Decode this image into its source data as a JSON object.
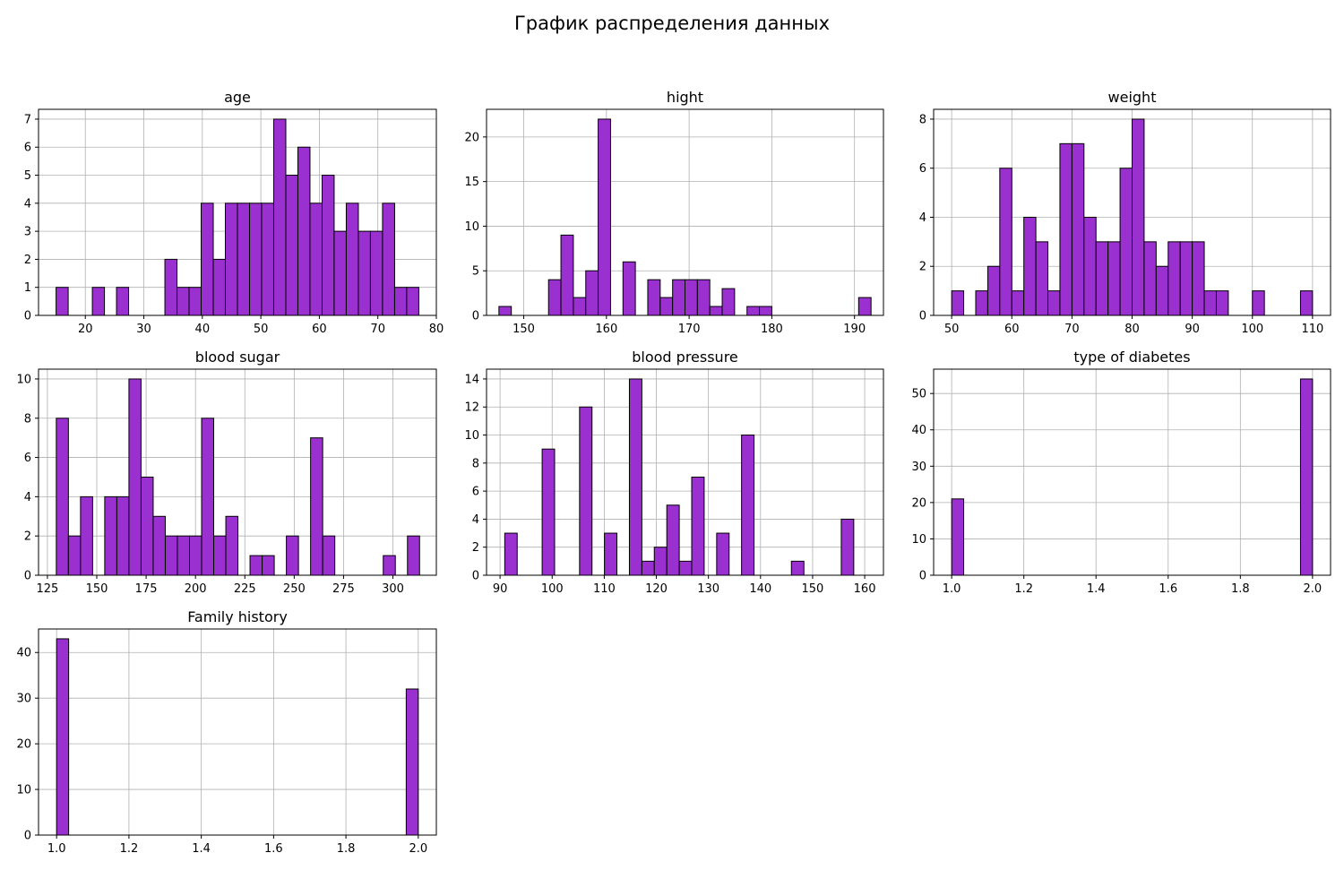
{
  "figure": {
    "title": "График распределения данных",
    "bar_color": "#9b30d0",
    "edge_color": "#000000",
    "grid_color": "#b0b0b0"
  },
  "chart_data": [
    {
      "type": "bar",
      "title": "age",
      "grid": true,
      "xlim": [
        12,
        80
      ],
      "ylim": [
        0,
        7.35
      ],
      "xticks": [
        20,
        30,
        40,
        50,
        60,
        70,
        80
      ],
      "yticks": [
        0,
        1,
        2,
        3,
        4,
        5,
        6,
        7
      ],
      "bins": [
        15,
        17.07,
        19.13,
        21.2,
        23.27,
        25.33,
        27.4,
        29.47,
        31.53,
        33.6,
        35.67,
        37.73,
        39.8,
        41.87,
        43.93,
        46,
        48.07,
        50.13,
        52.2,
        54.27,
        56.33,
        58.4,
        60.47,
        62.53,
        64.6,
        66.67,
        68.73,
        70.8,
        72.87,
        74.93,
        77
      ],
      "counts": [
        1,
        0,
        0,
        1,
        0,
        1,
        0,
        0,
        0,
        2,
        1,
        1,
        4,
        2,
        4,
        4,
        4,
        4,
        7,
        5,
        6,
        4,
        5,
        3,
        4,
        3,
        3,
        4,
        1,
        1
      ]
    },
    {
      "type": "bar",
      "title": "hight",
      "grid": true,
      "xlim": [
        145.5,
        193.5
      ],
      "ylim": [
        0,
        23.1
      ],
      "xticks": [
        150,
        160,
        170,
        180,
        190
      ],
      "yticks": [
        0,
        5,
        10,
        15,
        20
      ],
      "bins": [
        147,
        148.5,
        150,
        151.5,
        153,
        154.5,
        156,
        157.5,
        159,
        160.5,
        162,
        163.5,
        165,
        166.5,
        168,
        169.5,
        171,
        172.5,
        174,
        175.5,
        177,
        178.5,
        180,
        181.5,
        183,
        184.5,
        186,
        187.5,
        189,
        190.5,
        192
      ],
      "counts": [
        1,
        0,
        0,
        0,
        4,
        9,
        2,
        5,
        22,
        0,
        6,
        0,
        4,
        2,
        4,
        4,
        4,
        1,
        3,
        0,
        1,
        1,
        0,
        0,
        0,
        0,
        0,
        0,
        0,
        2
      ]
    },
    {
      "type": "bar",
      "title": "weight",
      "grid": true,
      "xlim": [
        47,
        113
      ],
      "ylim": [
        0,
        8.4
      ],
      "xticks": [
        50,
        60,
        70,
        80,
        90,
        100,
        110
      ],
      "yticks": [
        0,
        2,
        4,
        6,
        8
      ],
      "bins": [
        50,
        52,
        54,
        56,
        58,
        60,
        62,
        64,
        66,
        68,
        70,
        72,
        74,
        76,
        78,
        80,
        82,
        84,
        86,
        88,
        90,
        92,
        94,
        96,
        98,
        100,
        102,
        104,
        106,
        108,
        110
      ],
      "counts": [
        1,
        0,
        1,
        2,
        6,
        1,
        4,
        3,
        1,
        7,
        7,
        4,
        3,
        3,
        6,
        8,
        3,
        2,
        3,
        3,
        3,
        1,
        1,
        0,
        0,
        1,
        0,
        0,
        0,
        1
      ]
    },
    {
      "type": "bar",
      "title": "blood sugar",
      "grid": true,
      "xlim": [
        120.5,
        322
      ],
      "ylim": [
        0,
        10.5
      ],
      "xticks": [
        125,
        150,
        175,
        200,
        225,
        250,
        275,
        300
      ],
      "yticks": [
        0,
        2,
        4,
        6,
        8,
        10
      ],
      "bins": [
        129.5,
        135.63,
        141.77,
        147.9,
        154.03,
        160.17,
        166.3,
        172.43,
        178.57,
        184.7,
        190.83,
        196.97,
        203.1,
        209.23,
        215.37,
        221.5,
        227.63,
        233.77,
        239.9,
        246.03,
        252.17,
        258.3,
        264.43,
        270.57,
        276.7,
        282.83,
        288.97,
        295.1,
        301.23,
        307.37,
        313.5
      ],
      "counts": [
        8,
        2,
        4,
        0,
        4,
        4,
        10,
        5,
        3,
        2,
        2,
        2,
        8,
        2,
        3,
        0,
        1,
        1,
        0,
        2,
        0,
        7,
        2,
        0,
        0,
        0,
        0,
        1,
        0,
        2
      ]
    },
    {
      "type": "bar",
      "title": "blood pressure",
      "grid": true,
      "xlim": [
        87.4,
        163.6
      ],
      "ylim": [
        0,
        14.7
      ],
      "xticks": [
        90,
        100,
        110,
        120,
        130,
        140,
        150,
        160
      ],
      "yticks": [
        0,
        2,
        4,
        6,
        8,
        10,
        12,
        14
      ],
      "bins": [
        90.9,
        93.29,
        95.69,
        98.08,
        100.47,
        102.86,
        105.26,
        107.65,
        110.04,
        112.43,
        114.83,
        117.22,
        119.61,
        122.01,
        124.4,
        126.79,
        129.18,
        131.58,
        133.97,
        136.36,
        138.76,
        141.15,
        143.54,
        145.93,
        148.33,
        150.72,
        153.11,
        155.5,
        157.9,
        160.29,
        162.68
      ],
      "counts": [
        3,
        0,
        0,
        9,
        0,
        0,
        12,
        0,
        3,
        0,
        14,
        1,
        2,
        5,
        1,
        7,
        0,
        3,
        0,
        10,
        0,
        0,
        0,
        1,
        0,
        0,
        0,
        4,
        0,
        0
      ]
    },
    {
      "type": "bar",
      "title": "type of diabetes",
      "grid": true,
      "xlim": [
        0.95,
        2.05
      ],
      "ylim": [
        0,
        56.7
      ],
      "xticks": [
        "1.0",
        "1.2",
        "1.4",
        "1.6",
        "1.8",
        "2.0"
      ],
      "yticks": [
        0,
        10,
        20,
        30,
        40,
        50
      ],
      "bins": [
        1.0,
        1.0333,
        1.0667,
        1.1,
        1.1333,
        1.1667,
        1.2,
        1.2333,
        1.2667,
        1.3,
        1.3333,
        1.3667,
        1.4,
        1.4333,
        1.4667,
        1.5,
        1.5333,
        1.5667,
        1.6,
        1.6333,
        1.6667,
        1.7,
        1.7333,
        1.7667,
        1.8,
        1.8333,
        1.8667,
        1.9,
        1.9333,
        1.9667,
        2.0
      ],
      "counts": [
        21,
        0,
        0,
        0,
        0,
        0,
        0,
        0,
        0,
        0,
        0,
        0,
        0,
        0,
        0,
        0,
        0,
        0,
        0,
        0,
        0,
        0,
        0,
        0,
        0,
        0,
        0,
        0,
        0,
        54
      ]
    },
    {
      "type": "bar",
      "title": "Family history",
      "grid": true,
      "xlim": [
        0.95,
        2.05
      ],
      "ylim": [
        0,
        45.15
      ],
      "xticks": [
        "1.0",
        "1.2",
        "1.4",
        "1.6",
        "1.8",
        "2.0"
      ],
      "yticks": [
        0,
        10,
        20,
        30,
        40
      ],
      "bins": [
        1.0,
        1.0333,
        1.0667,
        1.1,
        1.1333,
        1.1667,
        1.2,
        1.2333,
        1.2667,
        1.3,
        1.3333,
        1.3667,
        1.4,
        1.4333,
        1.4667,
        1.5,
        1.5333,
        1.5667,
        1.6,
        1.6333,
        1.6667,
        1.7,
        1.7333,
        1.7667,
        1.8,
        1.8333,
        1.8667,
        1.9,
        1.9333,
        1.9667,
        2.0
      ],
      "counts": [
        43,
        0,
        0,
        0,
        0,
        0,
        0,
        0,
        0,
        0,
        0,
        0,
        0,
        0,
        0,
        0,
        0,
        0,
        0,
        0,
        0,
        0,
        0,
        0,
        0,
        0,
        0,
        0,
        0,
        32
      ]
    }
  ]
}
